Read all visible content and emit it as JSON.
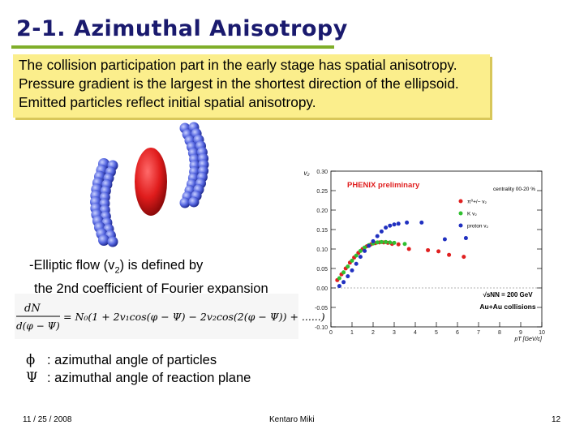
{
  "slide": {
    "title": "2-1. Azimuthal Anisotropy",
    "callout_lines": [
      "The collision participation part in the early stage has spatial anisotropy.",
      "Pressure gradient is the largest in the shortest direction of the ellipsoid.",
      "Emitted particles reflect initial spatial anisotropy."
    ],
    "flow_line1_prefix": "-Elliptic flow (v",
    "flow_line1_sub": "2",
    "flow_line1_suffix": ") is defined by",
    "flow_line2": "the 2nd coefficient of Fourier expansion",
    "formula": {
      "lhs_num": "dN",
      "lhs_den": "d(φ − Ψ)",
      "rhs": "= N₀(1 + 2v₁cos(φ − Ψ) − 2v₂cos(2(φ − Ψ)) + ......)"
    },
    "defs": [
      {
        "symbol": "ϕ",
        "text": ": azimuthal angle of particles"
      },
      {
        "symbol": "Ψ",
        "text": ": azimuthal angle of reaction plane"
      }
    ],
    "footer": {
      "date": "11 / 25 / 2008",
      "author": "Kentaro Miki",
      "page": "12"
    }
  },
  "colors": {
    "title": "#1a1a6e",
    "rule": "#7fae2a",
    "callout": "#fbee8c",
    "nucleus": "#dd1c1c",
    "nucleon": "#4a5ad8"
  },
  "chart_data": {
    "type": "scatter",
    "ylabel": "v₂",
    "xlabel": "pT [GeV/c]",
    "xlim": [
      0,
      10
    ],
    "ylim": [
      -0.1,
      0.3
    ],
    "y_ticks": [
      "0.30",
      "0.25",
      "0.20",
      "0.15",
      "0.10",
      "0.05",
      "0.00",
      "-0.05",
      "-0.10"
    ],
    "x_ticks": [
      "0",
      "1",
      "2",
      "3",
      "4",
      "5",
      "6",
      "7",
      "8",
      "9",
      "10"
    ],
    "annotations": [
      "PHENIX preliminary",
      "centrality 00-20 %",
      "√sNN = 200 GeV",
      "Au+Au collisions"
    ],
    "series": [
      {
        "name": "π⁰+/− v₂",
        "color": "#e02020",
        "points": [
          [
            0.3,
            0.02
          ],
          [
            0.5,
            0.035
          ],
          [
            0.7,
            0.05
          ],
          [
            0.9,
            0.065
          ],
          [
            1.1,
            0.078
          ],
          [
            1.3,
            0.09
          ],
          [
            1.5,
            0.1
          ],
          [
            1.7,
            0.107
          ],
          [
            1.9,
            0.112
          ],
          [
            2.1,
            0.115
          ],
          [
            2.3,
            0.117
          ],
          [
            2.5,
            0.117
          ],
          [
            2.7,
            0.116
          ],
          [
            2.9,
            0.113
          ],
          [
            3.2,
            0.112
          ],
          [
            3.7,
            0.1
          ],
          [
            4.6,
            0.097
          ],
          [
            5.1,
            0.094
          ],
          [
            5.6,
            0.085
          ],
          [
            6.3,
            0.08
          ]
        ]
      },
      {
        "name": "K v₂",
        "color": "#30c030",
        "points": [
          [
            0.4,
            0.025
          ],
          [
            0.6,
            0.04
          ],
          [
            0.8,
            0.055
          ],
          [
            1.0,
            0.07
          ],
          [
            1.2,
            0.083
          ],
          [
            1.4,
            0.095
          ],
          [
            1.6,
            0.104
          ],
          [
            1.8,
            0.11
          ],
          [
            2.0,
            0.114
          ],
          [
            2.2,
            0.117
          ],
          [
            2.4,
            0.118
          ],
          [
            2.6,
            0.118
          ],
          [
            2.8,
            0.117
          ],
          [
            3.0,
            0.116
          ],
          [
            3.5,
            0.113
          ]
        ]
      },
      {
        "name": "proton v₂",
        "color": "#2030c0",
        "points": [
          [
            0.4,
            0.005
          ],
          [
            0.6,
            0.015
          ],
          [
            0.8,
            0.03
          ],
          [
            1.0,
            0.045
          ],
          [
            1.2,
            0.062
          ],
          [
            1.4,
            0.08
          ],
          [
            1.6,
            0.095
          ],
          [
            1.8,
            0.108
          ],
          [
            2.0,
            0.12
          ],
          [
            2.2,
            0.133
          ],
          [
            2.4,
            0.145
          ],
          [
            2.6,
            0.155
          ],
          [
            2.8,
            0.16
          ],
          [
            3.0,
            0.163
          ],
          [
            3.2,
            0.165
          ],
          [
            3.6,
            0.168
          ],
          [
            4.3,
            0.168
          ],
          [
            5.4,
            0.125
          ],
          [
            6.4,
            0.128
          ]
        ]
      }
    ]
  }
}
